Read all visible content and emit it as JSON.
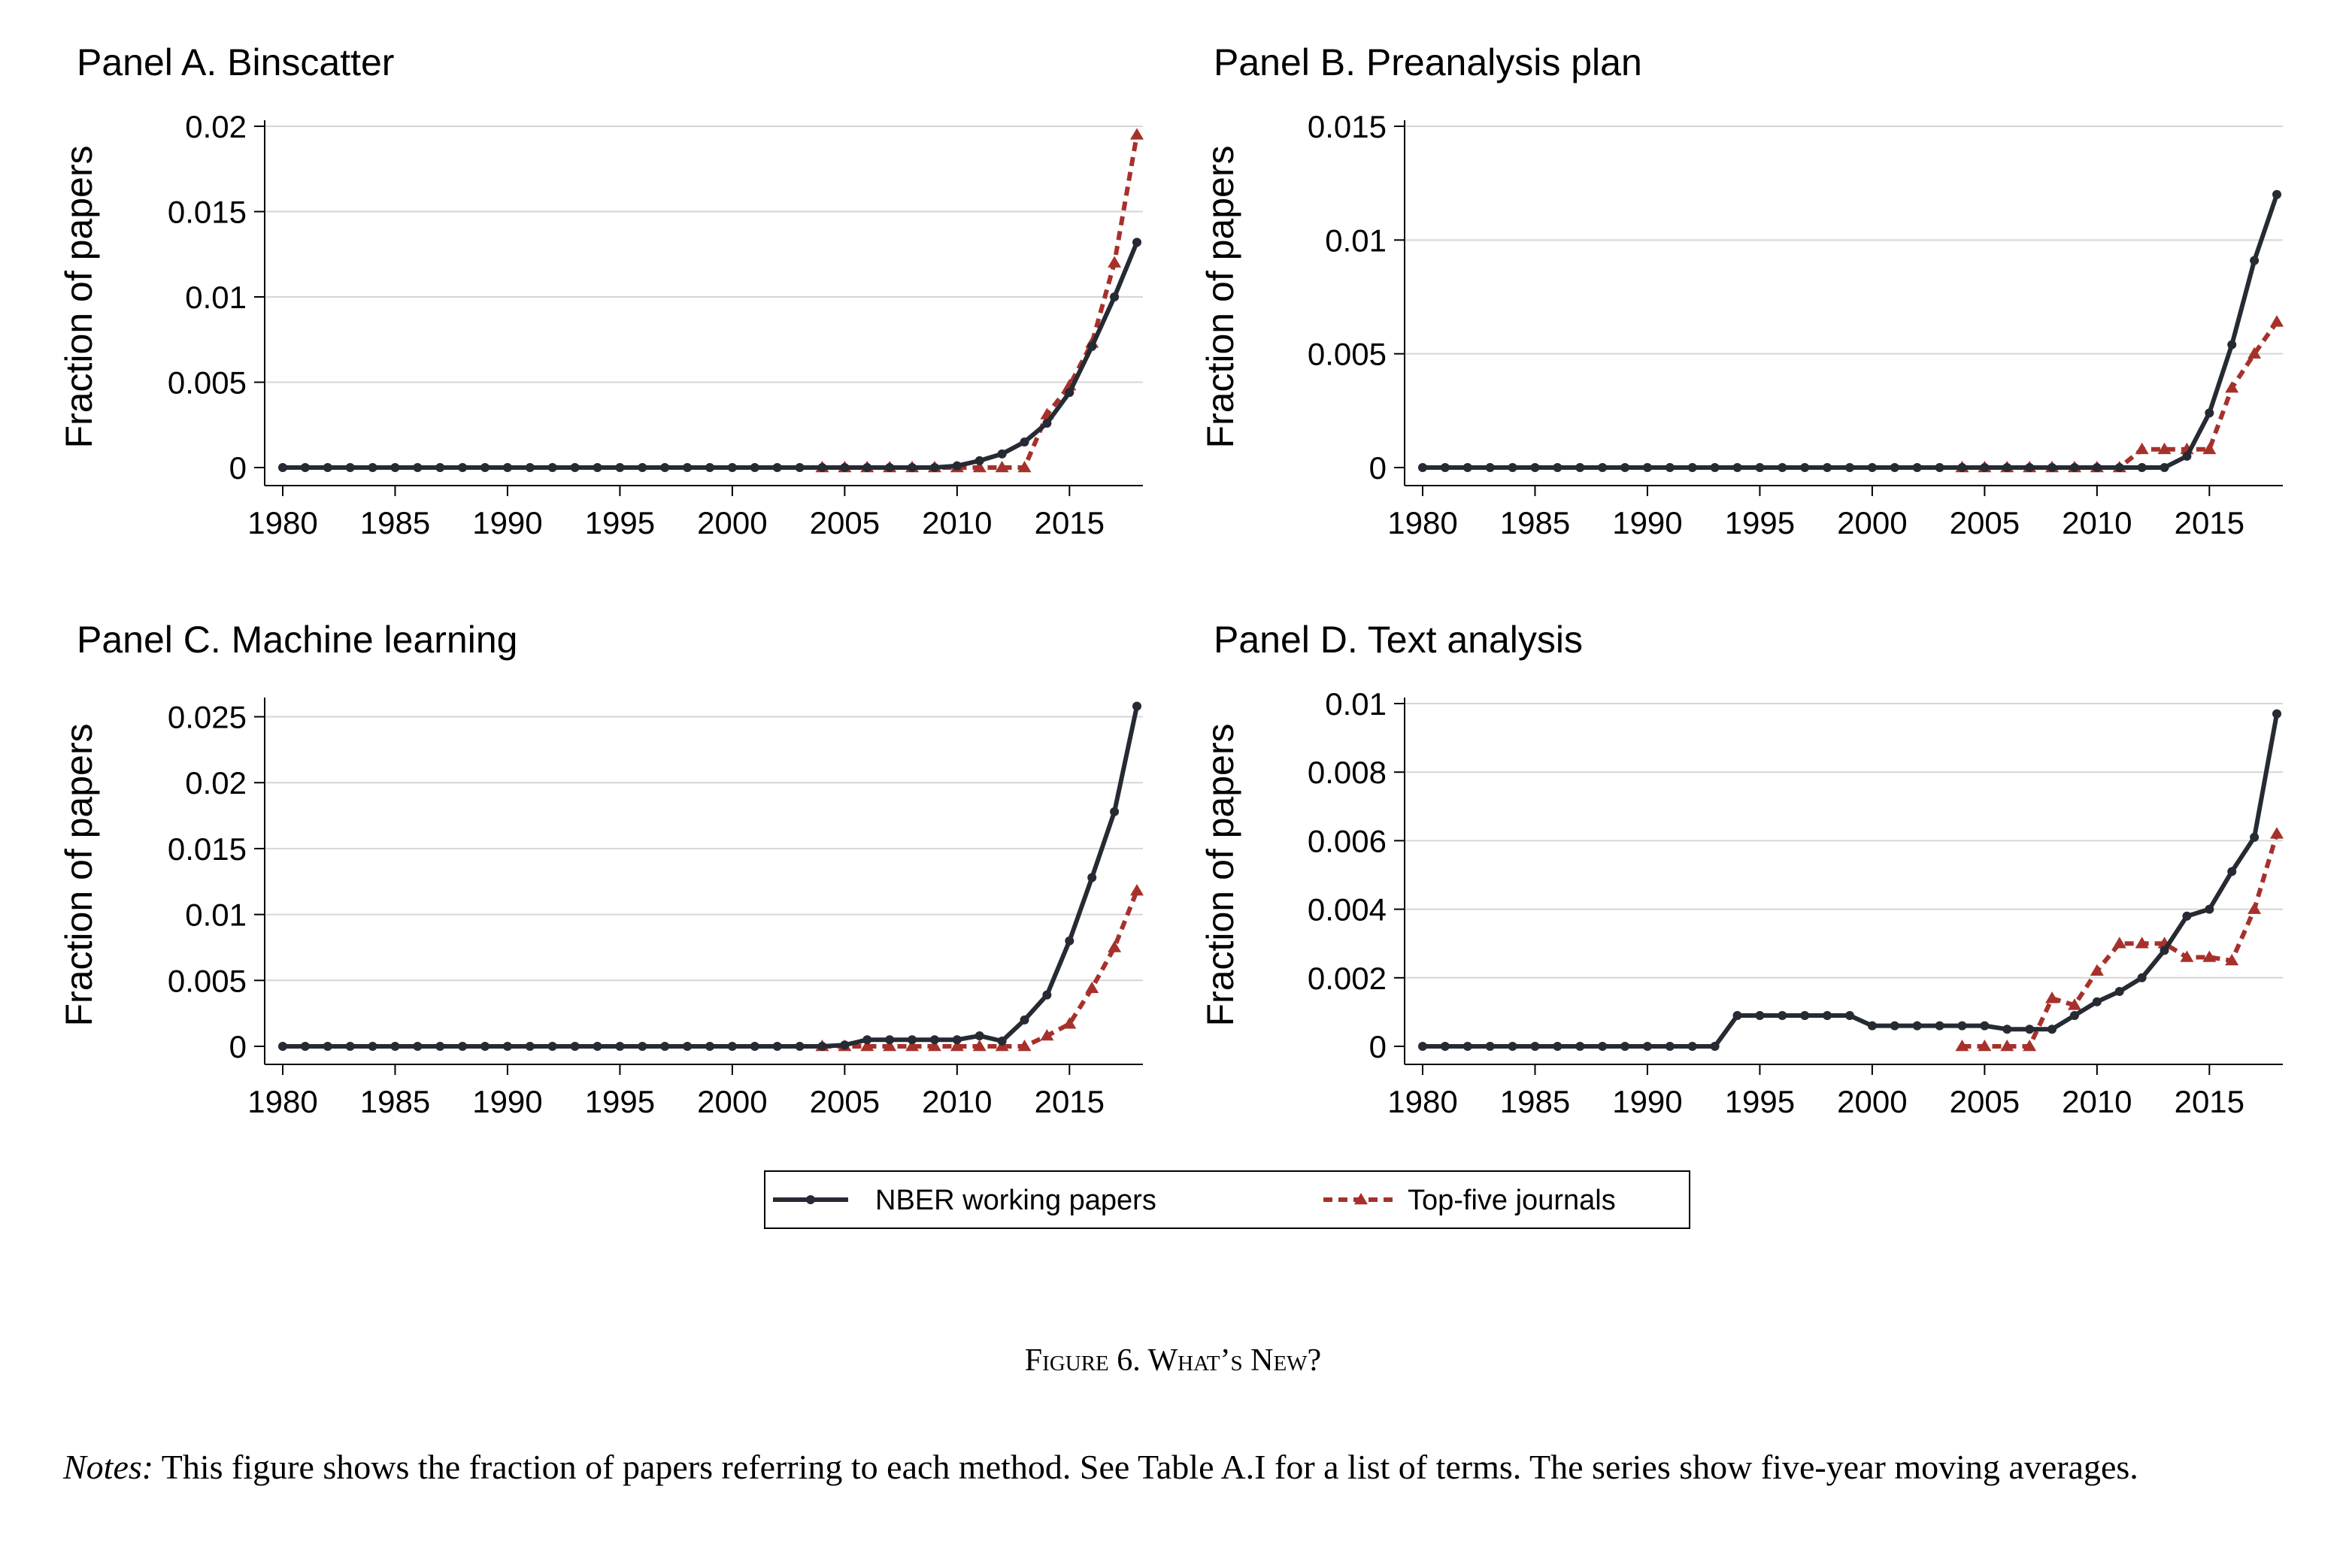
{
  "figure": {
    "caption": "Figure 6. What’s New?",
    "notes_label": "Notes:",
    "notes_text": " This figure shows the fraction of papers referring to each method. See Table A.I for a list of terms. The series show five-year moving averages."
  },
  "legend": {
    "items": [
      {
        "label": "NBER working papers",
        "color": "#262a33",
        "line": "solid",
        "marker": "circle"
      },
      {
        "label": "Top-five journals",
        "color": "#a6312b",
        "line": "dashed",
        "marker": "triangle"
      }
    ]
  },
  "chart_data": [
    {
      "type": "line",
      "title": "Panel A. Binscatter",
      "ylabel": "Fraction of papers",
      "xlabel": "",
      "xlim": [
        1980,
        2018
      ],
      "ylim": [
        0,
        0.02
      ],
      "xticks": [
        1980,
        1985,
        1990,
        1995,
        2000,
        2005,
        2010,
        2015
      ],
      "xtick_labels": [
        "1980",
        "1985",
        "1990",
        "1995",
        "2000",
        "2005",
        "2010",
        "2015"
      ],
      "yticks": [
        0,
        0.005,
        0.01,
        0.015,
        0.02
      ],
      "ytick_labels": [
        "0",
        "0.005",
        "0.01",
        "0.015",
        "0.02"
      ],
      "grid": true,
      "series": [
        {
          "name": "NBER working papers",
          "x": [
            1980,
            1981,
            1982,
            1983,
            1984,
            1985,
            1986,
            1987,
            1988,
            1989,
            1990,
            1991,
            1992,
            1993,
            1994,
            1995,
            1996,
            1997,
            1998,
            1999,
            2000,
            2001,
            2002,
            2003,
            2004,
            2005,
            2006,
            2007,
            2008,
            2009,
            2010,
            2011,
            2012,
            2013,
            2014,
            2015,
            2016,
            2017,
            2018
          ],
          "y": [
            0,
            0,
            0,
            0,
            0,
            0,
            0,
            0,
            0,
            0,
            0,
            0,
            0,
            0,
            0,
            0,
            0,
            0,
            0,
            0,
            0,
            0,
            0,
            0,
            0,
            0,
            0,
            0,
            0,
            0,
            0.0001,
            0.0004,
            0.0008,
            0.0015,
            0.0026,
            0.0044,
            0.0071,
            0.01,
            0.0132
          ]
        },
        {
          "name": "Top-five journals",
          "x": [
            2004,
            2005,
            2006,
            2007,
            2008,
            2009,
            2010,
            2011,
            2012,
            2013,
            2014,
            2015,
            2016,
            2017,
            2018
          ],
          "y": [
            0,
            0,
            0,
            0,
            0,
            0,
            0,
            0,
            0,
            0,
            0.0031,
            0.0048,
            0.0073,
            0.012,
            0.0195
          ]
        }
      ]
    },
    {
      "type": "line",
      "title": "Panel B. Preanalysis plan",
      "ylabel": "Fraction of papers",
      "xlabel": "",
      "xlim": [
        1980,
        2018
      ],
      "ylim": [
        0,
        0.015
      ],
      "xticks": [
        1980,
        1985,
        1990,
        1995,
        2000,
        2005,
        2010,
        2015
      ],
      "xtick_labels": [
        "1980",
        "1985",
        "1990",
        "1995",
        "2000",
        "2005",
        "2010",
        "2015"
      ],
      "yticks": [
        0,
        0.005,
        0.01,
        0.015
      ],
      "ytick_labels": [
        "0",
        "0.005",
        "0.01",
        "0.015"
      ],
      "grid": true,
      "series": [
        {
          "name": "NBER working papers",
          "x": [
            1980,
            1981,
            1982,
            1983,
            1984,
            1985,
            1986,
            1987,
            1988,
            1989,
            1990,
            1991,
            1992,
            1993,
            1994,
            1995,
            1996,
            1997,
            1998,
            1999,
            2000,
            2001,
            2002,
            2003,
            2004,
            2005,
            2006,
            2007,
            2008,
            2009,
            2010,
            2011,
            2012,
            2013,
            2014,
            2015,
            2016,
            2017,
            2018
          ],
          "y": [
            0,
            0,
            0,
            0,
            0,
            0,
            0,
            0,
            0,
            0,
            0,
            0,
            0,
            0,
            0,
            0,
            0,
            0,
            0,
            0,
            0,
            0,
            0,
            0,
            0,
            0,
            0,
            0,
            0,
            0,
            0,
            0,
            0,
            0,
            0.0005,
            0.0024,
            0.0054,
            0.0091,
            0.012
          ]
        },
        {
          "name": "Top-five journals",
          "x": [
            2004,
            2005,
            2006,
            2007,
            2008,
            2009,
            2010,
            2011,
            2012,
            2013,
            2014,
            2015,
            2016,
            2017,
            2018
          ],
          "y": [
            0,
            0,
            0,
            0,
            0,
            0,
            0,
            0,
            0.0008,
            0.0008,
            0.0008,
            0.0008,
            0.0035,
            0.005,
            0.0064
          ]
        }
      ]
    },
    {
      "type": "line",
      "title": "Panel C. Machine learning",
      "ylabel": "Fraction of papers",
      "xlabel": "",
      "xlim": [
        1980,
        2018
      ],
      "ylim": [
        0,
        0.026
      ],
      "xticks": [
        1980,
        1985,
        1990,
        1995,
        2000,
        2005,
        2010,
        2015
      ],
      "xtick_labels": [
        "1980",
        "1985",
        "1990",
        "1995",
        "2000",
        "2005",
        "2010",
        "2015"
      ],
      "yticks": [
        0,
        0.005,
        0.01,
        0.015,
        0.02,
        0.025
      ],
      "ytick_labels": [
        "0",
        "0.005",
        "0.01",
        "0.015",
        "0.02",
        "0.025"
      ],
      "grid": true,
      "series": [
        {
          "name": "NBER working papers",
          "x": [
            1980,
            1981,
            1982,
            1983,
            1984,
            1985,
            1986,
            1987,
            1988,
            1989,
            1990,
            1991,
            1992,
            1993,
            1994,
            1995,
            1996,
            1997,
            1998,
            1999,
            2000,
            2001,
            2002,
            2003,
            2004,
            2005,
            2006,
            2007,
            2008,
            2009,
            2010,
            2011,
            2012,
            2013,
            2014,
            2015,
            2016,
            2017,
            2018
          ],
          "y": [
            0,
            0,
            0,
            0,
            0,
            0,
            0,
            0,
            0,
            0,
            0,
            0,
            0,
            0,
            0,
            0,
            0,
            0,
            0,
            0,
            0,
            0,
            0,
            0,
            0,
            0.0001,
            0.0005,
            0.0005,
            0.0005,
            0.0005,
            0.0005,
            0.0008,
            0.0004,
            0.002,
            0.0039,
            0.008,
            0.0128,
            0.0178,
            0.0258
          ]
        },
        {
          "name": "Top-five journals",
          "x": [
            2004,
            2005,
            2006,
            2007,
            2008,
            2009,
            2010,
            2011,
            2012,
            2013,
            2014,
            2015,
            2016,
            2017,
            2018
          ],
          "y": [
            0,
            0,
            0,
            0,
            0,
            0,
            0,
            0,
            0,
            0,
            0.0008,
            0.0017,
            0.0044,
            0.0075,
            0.0118
          ]
        }
      ]
    },
    {
      "type": "line",
      "title": "Panel D. Text analysis",
      "ylabel": "Fraction of papers",
      "xlabel": "",
      "xlim": [
        1980,
        2018
      ],
      "ylim": [
        0,
        0.01
      ],
      "xticks": [
        1980,
        1985,
        1990,
        1995,
        2000,
        2005,
        2010,
        2015
      ],
      "xtick_labels": [
        "1980",
        "1985",
        "1990",
        "1995",
        "2000",
        "2005",
        "2010",
        "2015"
      ],
      "yticks": [
        0,
        0.002,
        0.004,
        0.006,
        0.008,
        0.01
      ],
      "ytick_labels": [
        "0",
        "0.002",
        "0.004",
        "0.006",
        "0.008",
        "0.01"
      ],
      "grid": true,
      "series": [
        {
          "name": "NBER working papers",
          "x": [
            1980,
            1981,
            1982,
            1983,
            1984,
            1985,
            1986,
            1987,
            1988,
            1989,
            1990,
            1991,
            1992,
            1993,
            1994,
            1995,
            1996,
            1997,
            1998,
            1999,
            2000,
            2001,
            2002,
            2003,
            2004,
            2005,
            2006,
            2007,
            2008,
            2009,
            2010,
            2011,
            2012,
            2013,
            2014,
            2015,
            2016,
            2017,
            2018
          ],
          "y": [
            0,
            0,
            0,
            0,
            0,
            0,
            0,
            0,
            0,
            0,
            0,
            0,
            0,
            0,
            0.0009,
            0.0009,
            0.0009,
            0.0009,
            0.0009,
            0.0009,
            0.0006,
            0.0006,
            0.0006,
            0.0006,
            0.0006,
            0.0006,
            0.0005,
            0.0005,
            0.0005,
            0.0009,
            0.0013,
            0.0016,
            0.002,
            0.0028,
            0.0038,
            0.004,
            0.0051,
            0.0061,
            0.0097
          ]
        },
        {
          "name": "Top-five journals",
          "x": [
            2004,
            2005,
            2006,
            2007,
            2008,
            2009,
            2010,
            2011,
            2012,
            2013,
            2014,
            2015,
            2016,
            2017,
            2018
          ],
          "y": [
            0,
            0,
            0,
            0,
            0.0014,
            0.0012,
            0.0022,
            0.003,
            0.003,
            0.003,
            0.0026,
            0.0026,
            0.0025,
            0.004,
            0.0062
          ]
        }
      ]
    }
  ]
}
